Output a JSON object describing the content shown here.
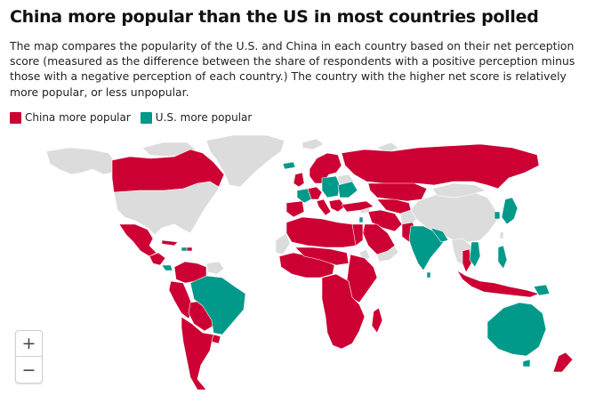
{
  "title": "China more popular than the US in most countries polled",
  "description": "The map compares the popularity of the U.S. and China in each country based on their net perception score (measured as the difference between the share of respondents with a positive perception minus those with a negative perception of each country.) The country with the higher net score is relatively more popular, or less unpopular.",
  "legend": {
    "items": [
      {
        "label": "China more popular",
        "color": "#cc0033"
      },
      {
        "label": "U.S. more popular",
        "color": "#00998a"
      }
    ]
  },
  "map": {
    "colors": {
      "china": "#cc0033",
      "us": "#00998a",
      "no_data": "#dcdcdc",
      "border": "#ffffff"
    },
    "china_more_popular": [
      "Canada",
      "Mexico",
      "Guatemala",
      "Honduras",
      "Nicaragua",
      "Cuba",
      "Dominican Republic",
      "Colombia",
      "Venezuela",
      "Ecuador",
      "Peru",
      "Bolivia",
      "Chile",
      "Argentina",
      "Paraguay",
      "Uruguay",
      "Ireland",
      "United Kingdom",
      "Norway",
      "Sweden",
      "Finland",
      "Denmark",
      "Belgium",
      "Netherlands",
      "Germany",
      "Switzerland",
      "Austria",
      "Spain",
      "Portugal",
      "Italy",
      "Greece",
      "Serbia",
      "Bosnia and Herzegovina",
      "Montenegro",
      "Slovenia",
      "Croatia",
      "North Macedonia",
      "Bulgaria",
      "Turkey",
      "Iraq",
      "Iran",
      "Saudi Arabia",
      "Jordan",
      "Egypt",
      "Libya",
      "Tunisia",
      "Algeria",
      "Morocco",
      "Russia",
      "Kazakhstan",
      "Kyrgyzstan",
      "Tajikistan",
      "Uzbekistan",
      "Turkmenistan",
      "Pakistan",
      "Malaysia",
      "Indonesia",
      "Singapore",
      "Thailand",
      "New Zealand",
      "Mauritania",
      "Mali",
      "Niger",
      "Chad",
      "Nigeria",
      "Cameroon",
      "Senegal",
      "Guinea",
      "Sierra Leone",
      "Liberia",
      "Ivory Coast",
      "Ghana",
      "Burkina Faso",
      "Benin",
      "Togo",
      "Gabon",
      "Republic of the Congo",
      "Democratic Republic of the Congo",
      "Uganda",
      "Kenya",
      "Tanzania",
      "Ethiopia",
      "Somalia",
      "Djibouti",
      "Zambia",
      "Zimbabwe",
      "Malawi",
      "Mozambique",
      "Botswana",
      "Namibia",
      "South Africa",
      "Madagascar",
      "Angola",
      "Sudan",
      "South Sudan",
      "Central African Republic",
      "Rwanda",
      "Burundi",
      "Lesotho",
      "Eswatini",
      "Equatorial Guinea",
      "Gambia",
      "Guinea-Bissau"
    ],
    "us_more_popular": [
      "Brazil",
      "Costa Rica",
      "Panama",
      "Haiti",
      "Iceland",
      "France",
      "Poland",
      "Czechia",
      "Slovakia",
      "Hungary",
      "Romania",
      "Ukraine",
      "Lithuania",
      "Latvia",
      "Estonia",
      "Israel",
      "India",
      "Nepal",
      "Bangladesh",
      "Vietnam",
      "Philippines",
      "Japan",
      "South Korea",
      "Australia",
      "Papua New Guinea",
      "Cambodia",
      "Sri Lanka",
      "Moldova",
      "Georgia",
      "Armenia"
    ]
  },
  "controls": {
    "zoom_in": "+",
    "zoom_out": "−"
  }
}
